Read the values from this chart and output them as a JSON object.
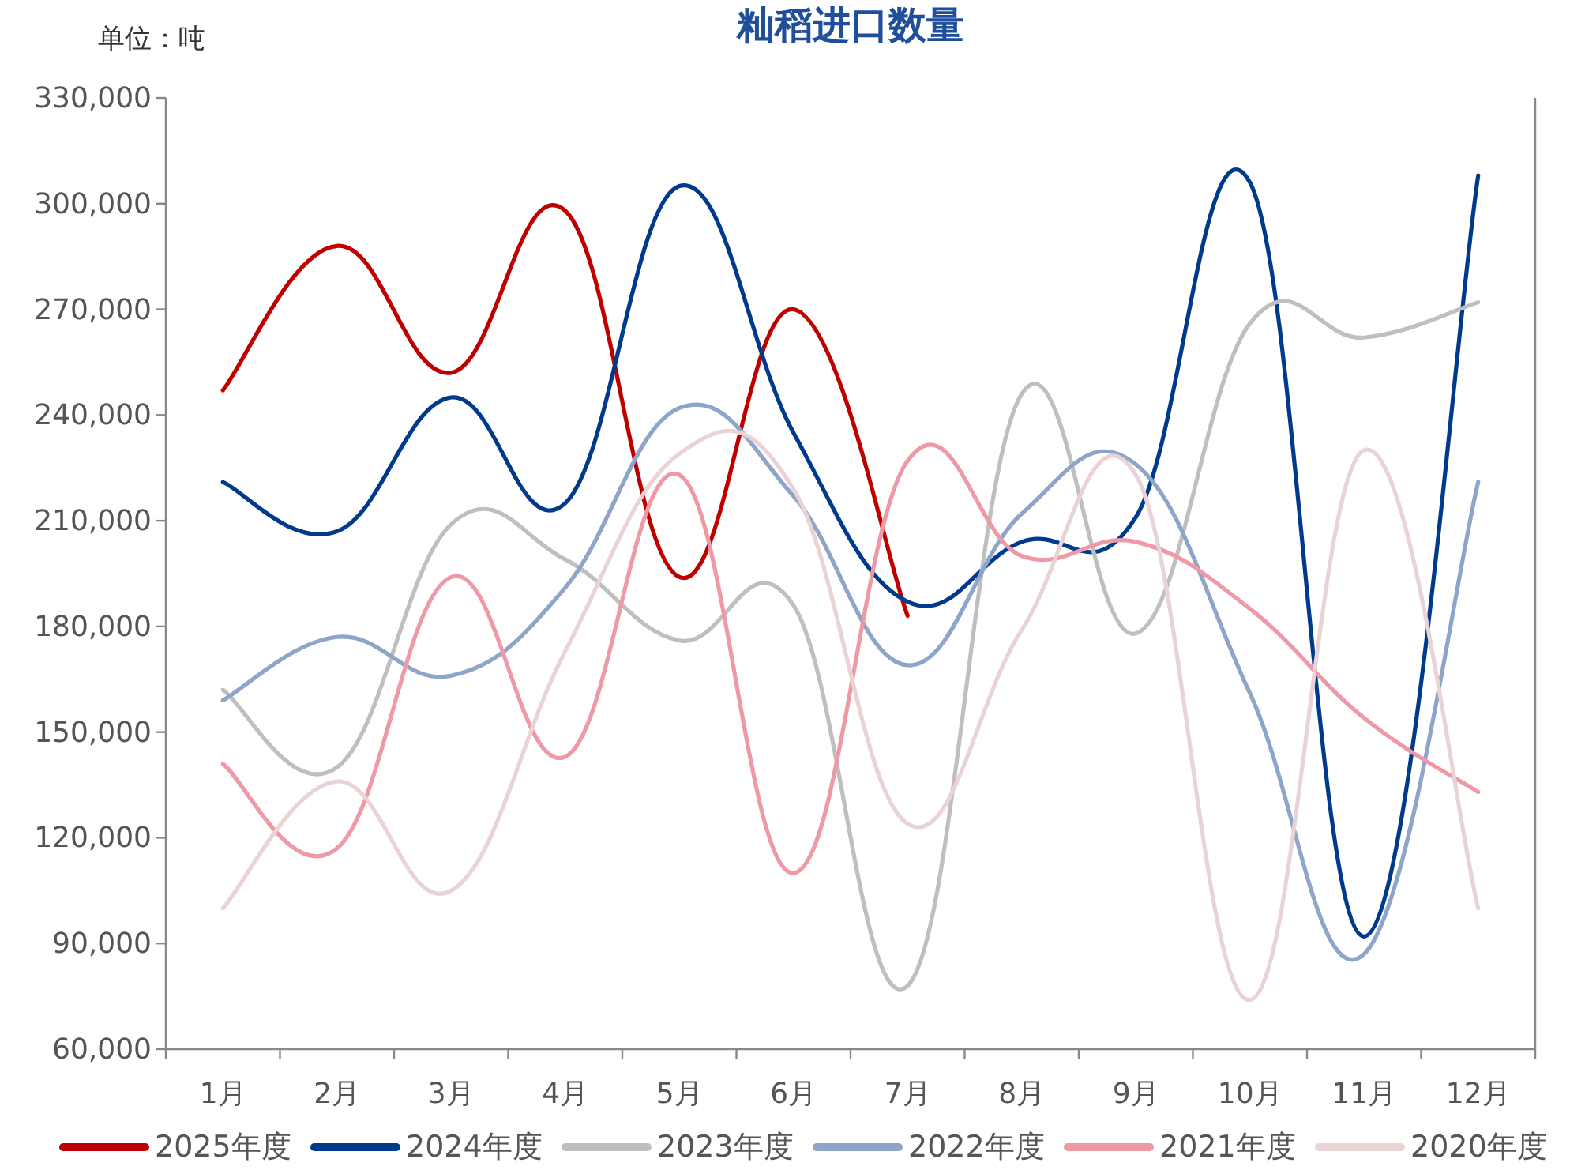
{
  "chart_data": {
    "type": "line",
    "title": "籼稻进口数量",
    "ylabel": "单位：吨",
    "categories": [
      "1月",
      "2月",
      "3月",
      "4月",
      "5月",
      "6月",
      "7月",
      "8月",
      "9月",
      "10月",
      "11月",
      "12月"
    ],
    "ylim": [
      60000,
      330000
    ],
    "yticks": [
      {
        "value": 60000,
        "label": "60,000"
      },
      {
        "value": 90000,
        "label": "90,000"
      },
      {
        "value": 120000,
        "label": "120,000"
      },
      {
        "value": 150000,
        "label": "150,000"
      },
      {
        "value": 180000,
        "label": "180,000"
      },
      {
        "value": 210000,
        "label": "210,000"
      },
      {
        "value": 240000,
        "label": "240,000"
      },
      {
        "value": 270000,
        "label": "270,000"
      },
      {
        "value": 300000,
        "label": "300,000"
      },
      {
        "value": 330000,
        "label": "330,000"
      }
    ],
    "grid": false,
    "legend": "bottom",
    "marker": "none",
    "line_style": "solid",
    "series": [
      {
        "name": "2025年度",
        "color": "#c00000",
        "values": [
          247000,
          288000,
          252000,
          298000,
          194000,
          270000,
          183000,
          null,
          null,
          null,
          null,
          null
        ]
      },
      {
        "name": "2024年度",
        "color": "#003a8c",
        "values": [
          221000,
          207000,
          245000,
          215000,
          305000,
          235000,
          187000,
          204000,
          211000,
          306000,
          92000,
          308000
        ]
      },
      {
        "name": "2023年度",
        "color": "#bfbfbf",
        "values": [
          162000,
          140000,
          209000,
          199000,
          176000,
          186000,
          78000,
          246000,
          178000,
          266000,
          262000,
          272000
        ]
      },
      {
        "name": "2022年度",
        "color": "#8ea4c8",
        "values": [
          159000,
          177000,
          166000,
          191000,
          242000,
          217000,
          169000,
          212000,
          226000,
          161000,
          87000,
          221000
        ]
      },
      {
        "name": "2021年度",
        "color": "#ee9aa6",
        "values": [
          141000,
          117000,
          194000,
          143000,
          223000,
          110000,
          227000,
          200000,
          204000,
          185000,
          154000,
          133000
        ]
      },
      {
        "name": "2020年度",
        "color": "#ead3d5",
        "values": [
          100000,
          136000,
          105000,
          173000,
          229000,
          219000,
          124000,
          179000,
          223000,
          74000,
          230000,
          100000
        ]
      }
    ]
  }
}
